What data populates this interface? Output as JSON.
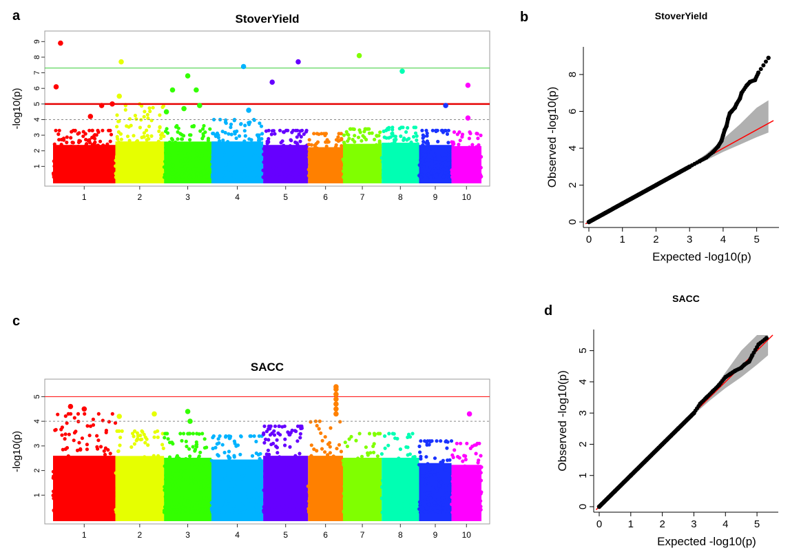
{
  "panels": {
    "a": {
      "letter": "a"
    },
    "b": {
      "letter": "b"
    },
    "c": {
      "letter": "c"
    },
    "d": {
      "letter": "d"
    }
  },
  "chart_data": [
    {
      "id": "a",
      "type": "scatter",
      "subtype": "manhattan",
      "title": "StoverYield",
      "xlabel": "",
      "ylabel": "-log10(p)",
      "ylim": [
        0,
        9.5
      ],
      "y_ticks": [
        1,
        2,
        3,
        4,
        5,
        6,
        7,
        8,
        9
      ],
      "x_tick_labels": [
        "1",
        "2",
        "3",
        "4",
        "5",
        "6",
        "7",
        "8",
        "9",
        "10"
      ],
      "chromosomes": [
        {
          "chr": "1",
          "color": "#ff0000",
          "span": 1.0
        },
        {
          "chr": "2",
          "color": "#e6ff00",
          "span": 0.78
        },
        {
          "chr": "3",
          "color": "#33ff00",
          "span": 0.76
        },
        {
          "chr": "4",
          "color": "#00b3ff",
          "span": 0.83
        },
        {
          "chr": "5",
          "color": "#6600ff",
          "span": 0.72
        },
        {
          "chr": "6",
          "color": "#ff8000",
          "span": 0.56
        },
        {
          "chr": "7",
          "color": "#80ff00",
          "span": 0.62
        },
        {
          "chr": "8",
          "color": "#00ffb3",
          "span": 0.6
        },
        {
          "chr": "9",
          "color": "#1a33ff",
          "span": 0.52
        },
        {
          "chr": "10",
          "color": "#ff00ff",
          "span": 0.48
        }
      ],
      "thresholds": [
        {
          "value": 7.3,
          "color": "#33cc33",
          "style": "solid"
        },
        {
          "value": 5.0,
          "color": "#e60000",
          "style": "solid-thick"
        },
        {
          "value": 4.0,
          "color": "#888888",
          "style": "dashed"
        }
      ],
      "significant_points": [
        {
          "chr": "1",
          "pos": 0.12,
          "y": 8.9
        },
        {
          "chr": "1",
          "pos": 0.05,
          "y": 6.1
        },
        {
          "chr": "1",
          "pos": 0.78,
          "y": 4.9
        },
        {
          "chr": "1",
          "pos": 0.95,
          "y": 5.0
        },
        {
          "chr": "1",
          "pos": 0.6,
          "y": 4.2
        },
        {
          "chr": "2",
          "pos": 0.12,
          "y": 7.7
        },
        {
          "chr": "2",
          "pos": 0.08,
          "y": 5.5
        },
        {
          "chr": "3",
          "pos": 0.18,
          "y": 5.9
        },
        {
          "chr": "3",
          "pos": 0.5,
          "y": 6.8
        },
        {
          "chr": "3",
          "pos": 0.68,
          "y": 5.9
        },
        {
          "chr": "3",
          "pos": 0.42,
          "y": 4.7
        },
        {
          "chr": "3",
          "pos": 0.75,
          "y": 4.9
        },
        {
          "chr": "3",
          "pos": 0.05,
          "y": 4.5
        },
        {
          "chr": "4",
          "pos": 0.62,
          "y": 7.4
        },
        {
          "chr": "4",
          "pos": 0.72,
          "y": 4.6
        },
        {
          "chr": "5",
          "pos": 0.2,
          "y": 6.4
        },
        {
          "chr": "5",
          "pos": 0.78,
          "y": 7.7
        },
        {
          "chr": "7",
          "pos": 0.42,
          "y": 8.1
        },
        {
          "chr": "8",
          "pos": 0.55,
          "y": 7.1
        },
        {
          "chr": "9",
          "pos": 0.82,
          "y": 4.9
        },
        {
          "chr": "10",
          "pos": 0.55,
          "y": 6.2
        },
        {
          "chr": "10",
          "pos": 0.55,
          "y": 4.1
        }
      ],
      "peak_heights": [
        3.3,
        5.0,
        3.6,
        4.0,
        3.3,
        3.1,
        3.4,
        3.5,
        3.3,
        3.2
      ]
    },
    {
      "id": "b",
      "type": "scatter",
      "subtype": "qq",
      "title": "StoverYield",
      "xlabel": "Expected -log10(p)",
      "ylabel": "Observed -log10(p)",
      "xlim": [
        0,
        5.5
      ],
      "ylim": [
        0,
        9.2
      ],
      "x_ticks": [
        0,
        1,
        2,
        3,
        4,
        5
      ],
      "y_ticks": [
        0,
        2,
        4,
        6,
        8
      ],
      "points": [
        [
          0,
          0
        ],
        [
          0.5,
          0.5
        ],
        [
          1,
          1
        ],
        [
          1.5,
          1.5
        ],
        [
          2,
          2
        ],
        [
          2.5,
          2.5
        ],
        [
          3,
          3
        ],
        [
          3.3,
          3.3
        ],
        [
          3.5,
          3.5
        ],
        [
          3.7,
          3.8
        ],
        [
          3.85,
          4.1
        ],
        [
          3.95,
          4.4
        ],
        [
          4.0,
          4.7
        ],
        [
          4.05,
          5.0
        ],
        [
          4.1,
          5.2
        ],
        [
          4.15,
          5.6
        ],
        [
          4.2,
          5.9
        ],
        [
          4.25,
          6.0
        ],
        [
          4.35,
          6.2
        ],
        [
          4.4,
          6.4
        ],
        [
          4.5,
          6.7
        ],
        [
          4.55,
          7.0
        ],
        [
          4.7,
          7.4
        ],
        [
          4.8,
          7.6
        ],
        [
          4.95,
          7.7
        ],
        [
          5.05,
          8.1
        ],
        [
          5.35,
          8.9
        ]
      ],
      "expected_line": {
        "color": "#ff0000"
      },
      "confidence_band": {
        "color": "#b0b0b0"
      }
    },
    {
      "id": "c",
      "type": "scatter",
      "subtype": "manhattan",
      "title": "SACC",
      "xlabel": "",
      "ylabel": "-log10(p)",
      "ylim": [
        0,
        5.6
      ],
      "y_ticks": [
        1,
        2,
        3,
        4,
        5
      ],
      "x_tick_labels": [
        "1",
        "2",
        "3",
        "4",
        "5",
        "6",
        "7",
        "8",
        "9",
        "10"
      ],
      "chromosomes": [
        {
          "chr": "1",
          "color": "#ff0000",
          "span": 1.0
        },
        {
          "chr": "2",
          "color": "#e6ff00",
          "span": 0.78
        },
        {
          "chr": "3",
          "color": "#33ff00",
          "span": 0.76
        },
        {
          "chr": "4",
          "color": "#00b3ff",
          "span": 0.83
        },
        {
          "chr": "5",
          "color": "#6600ff",
          "span": 0.72
        },
        {
          "chr": "6",
          "color": "#ff8000",
          "span": 0.56
        },
        {
          "chr": "7",
          "color": "#80ff00",
          "span": 0.62
        },
        {
          "chr": "8",
          "color": "#00ffb3",
          "span": 0.6
        },
        {
          "chr": "9",
          "color": "#1a33ff",
          "span": 0.52
        },
        {
          "chr": "10",
          "color": "#ff00ff",
          "span": 0.48
        }
      ],
      "thresholds": [
        {
          "value": 5.0,
          "color": "#ff0000",
          "style": "solid"
        },
        {
          "value": 4.0,
          "color": "#888888",
          "style": "dashed"
        }
      ],
      "significant_points": [
        {
          "chr": "1",
          "pos": 0.28,
          "y": 4.6
        },
        {
          "chr": "1",
          "pos": 0.5,
          "y": 4.5
        },
        {
          "chr": "2",
          "pos": 0.08,
          "y": 4.2
        },
        {
          "chr": "2",
          "pos": 0.8,
          "y": 4.3
        },
        {
          "chr": "3",
          "pos": 0.5,
          "y": 4.4
        },
        {
          "chr": "3",
          "pos": 0.55,
          "y": 4.0
        },
        {
          "chr": "6",
          "pos": 0.8,
          "y": 5.4
        },
        {
          "chr": "6",
          "pos": 0.8,
          "y": 5.3
        },
        {
          "chr": "6",
          "pos": 0.8,
          "y": 5.1
        },
        {
          "chr": "6",
          "pos": 0.8,
          "y": 4.9
        },
        {
          "chr": "6",
          "pos": 0.8,
          "y": 4.7
        },
        {
          "chr": "6",
          "pos": 0.8,
          "y": 4.5
        },
        {
          "chr": "6",
          "pos": 0.8,
          "y": 4.3
        },
        {
          "chr": "10",
          "pos": 0.6,
          "y": 4.3
        }
      ],
      "peak_heights": [
        4.3,
        3.6,
        3.5,
        3.4,
        3.8,
        4.0,
        3.5,
        3.5,
        3.2,
        3.1
      ]
    },
    {
      "id": "d",
      "type": "scatter",
      "subtype": "qq",
      "title": "SACC",
      "xlabel": "Expected -log10(p)",
      "ylabel": "Observed -log10(p)",
      "xlim": [
        0,
        5.5
      ],
      "ylim": [
        0,
        5.5
      ],
      "x_ticks": [
        0,
        1,
        2,
        3,
        4,
        5
      ],
      "y_ticks": [
        0,
        1,
        2,
        3,
        4,
        5
      ],
      "points": [
        [
          0,
          0
        ],
        [
          0.5,
          0.5
        ],
        [
          1,
          1
        ],
        [
          1.5,
          1.5
        ],
        [
          2,
          2
        ],
        [
          2.5,
          2.5
        ],
        [
          3,
          3
        ],
        [
          3.2,
          3.3
        ],
        [
          3.4,
          3.5
        ],
        [
          3.6,
          3.7
        ],
        [
          3.8,
          3.9
        ],
        [
          4.0,
          4.15
        ],
        [
          4.15,
          4.25
        ],
        [
          4.3,
          4.35
        ],
        [
          4.5,
          4.45
        ],
        [
          4.6,
          4.55
        ],
        [
          4.75,
          4.65
        ],
        [
          4.85,
          4.85
        ],
        [
          5.05,
          5.2
        ],
        [
          5.3,
          5.4
        ]
      ],
      "expected_line": {
        "color": "#ff0000"
      },
      "confidence_band": {
        "color": "#b0b0b0"
      }
    }
  ]
}
